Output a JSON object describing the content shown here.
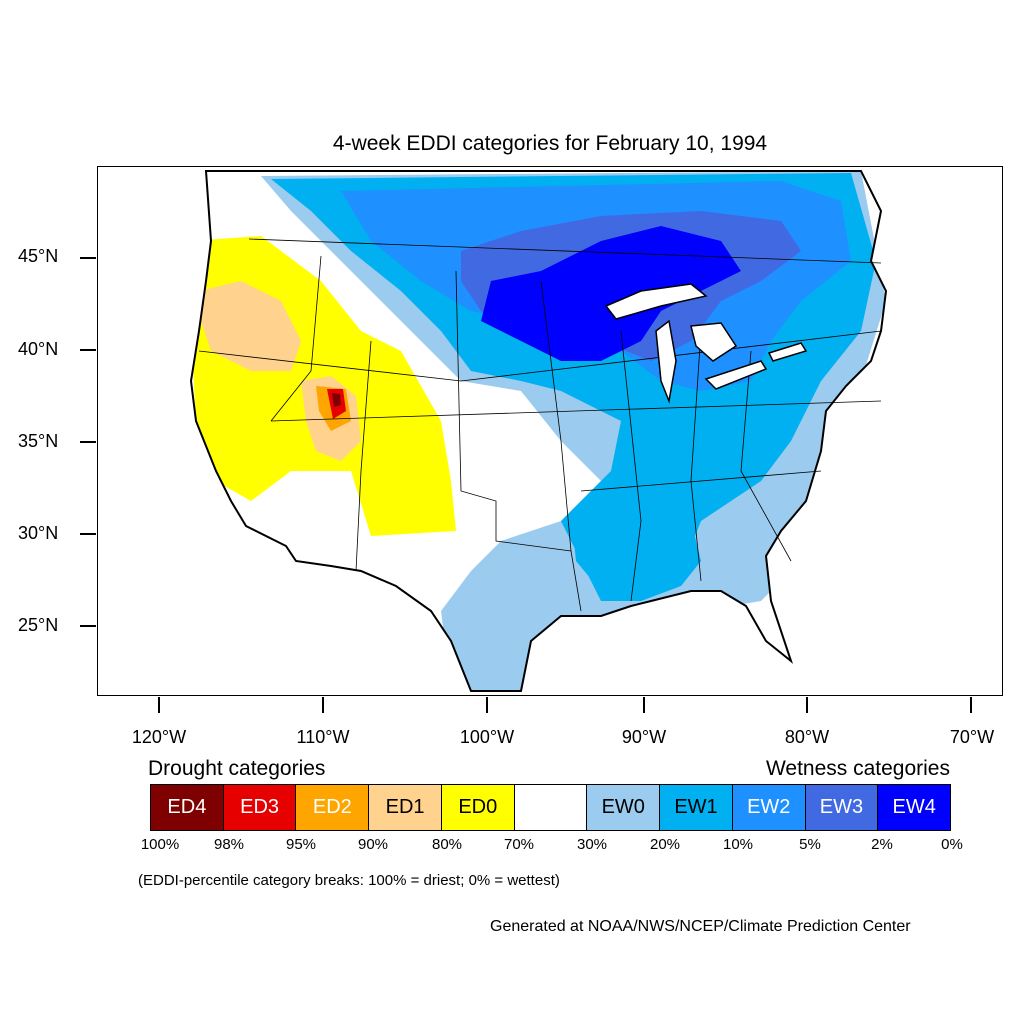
{
  "title": "4-week EDDI categories for February 10, 1994",
  "colors": {
    "ED4": "#7f0000",
    "ED3": "#e60000",
    "ED2": "#ffa500",
    "ED1": "#ffd38e",
    "ED0": "#ffff00",
    "neutral": "#ffffff",
    "EW0": "#9bcbee",
    "EW1": "#00b0f0",
    "EW2": "#1e90ff",
    "EW3": "#4169e1",
    "EW4": "#0000ff"
  },
  "latitude_labels": [
    "45°N",
    "40°N",
    "35°N",
    "30°N",
    "25°N"
  ],
  "longitude_labels": [
    "120°W",
    "110°W",
    "100°W",
    "90°W",
    "80°W",
    "70°W"
  ],
  "legend": {
    "drought_heading": "Drought categories",
    "wetness_heading": "Wetness categories",
    "categories": [
      {
        "code": "ED4",
        "label": "ED4",
        "text_color": "#ffffff"
      },
      {
        "code": "ED3",
        "label": "ED3",
        "text_color": "#ffffff"
      },
      {
        "code": "ED2",
        "label": "ED2",
        "text_color": "#ffffff"
      },
      {
        "code": "ED1",
        "label": "ED1",
        "text_color": "#000000"
      },
      {
        "code": "ED0",
        "label": "ED0",
        "text_color": "#000000"
      },
      {
        "code": "neutral",
        "label": "",
        "text_color": "#000000"
      },
      {
        "code": "EW0",
        "label": "EW0",
        "text_color": "#000000"
      },
      {
        "code": "EW1",
        "label": "EW1",
        "text_color": "#000000"
      },
      {
        "code": "EW2",
        "label": "EW2",
        "text_color": "#ffffff"
      },
      {
        "code": "EW3",
        "label": "EW3",
        "text_color": "#ffffff"
      },
      {
        "code": "EW4",
        "label": "EW4",
        "text_color": "#ffffff"
      }
    ],
    "breaks": [
      "100%",
      "98%",
      "95%",
      "90%",
      "80%",
      "70%",
      "30%",
      "20%",
      "10%",
      "5%",
      "2%",
      "0%"
    ]
  },
  "note": "(EDDI-percentile category breaks: 100% = driest; 0% = wettest)",
  "credit": "Generated at NOAA/NWS/NCEP/Climate Prediction Center"
}
